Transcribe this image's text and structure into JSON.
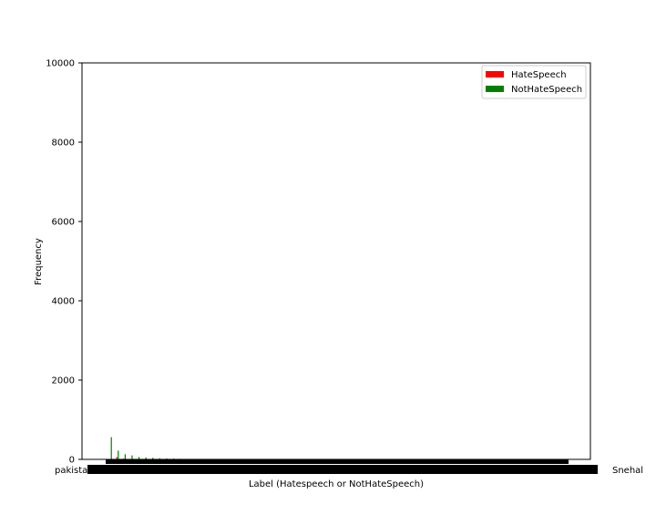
{
  "chart_data": {
    "type": "bar",
    "xlabel": "Label (Hatespeech or NotHateSpeech)",
    "ylabel": "Frequency",
    "ylim": [
      0,
      10000
    ],
    "yticks": [
      0,
      2000,
      4000,
      6000,
      8000,
      10000
    ],
    "grid": false,
    "legend_position": "top-right",
    "x_first_tick_label": "pakistan",
    "x_last_tick_label": "Snehal",
    "x_tick_labels_note": "hundreds of overlapping word labels (illegible)",
    "series": [
      {
        "name": "HateSpeech",
        "color": "#ff0000",
        "values": [
          0,
          60,
          20,
          10,
          5,
          5,
          3,
          3,
          2,
          2,
          1,
          1,
          1,
          1,
          1,
          1
        ]
      },
      {
        "name": "NotHateSpeech",
        "color": "#008000",
        "values": [
          560,
          220,
          130,
          100,
          60,
          50,
          40,
          30,
          25,
          20,
          15,
          12,
          10,
          8,
          7,
          6
        ]
      }
    ]
  }
}
